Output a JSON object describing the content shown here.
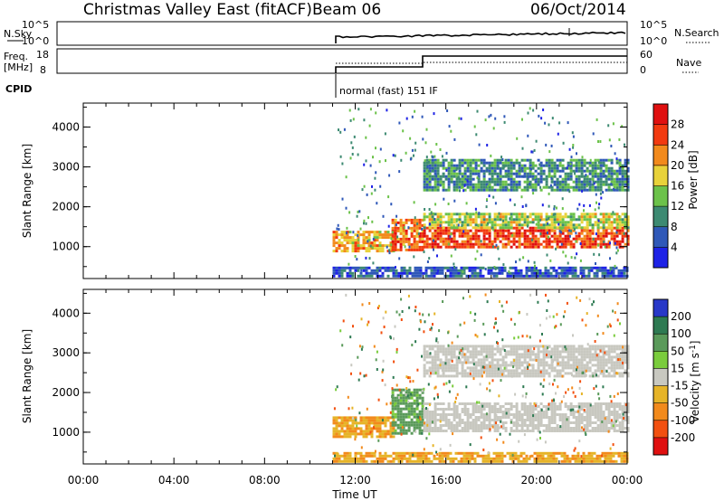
{
  "header": {
    "title": "Christmas Valley East (fitACF)",
    "beam": "Beam 06",
    "date": "06/Oct/2014"
  },
  "strips": {
    "nsky_label": "N.Sky",
    "nsearch_label": "N.Search",
    "freq_label_1": "Freq.",
    "freq_label_2": "[MHz]",
    "nave_label": "Nave",
    "cpid_label": "CPID",
    "cpid_text": "normal (fast) 151 IF",
    "nsky_ticks": [
      "10^5",
      "10^0"
    ],
    "nsearch_ticks": [
      "10^5",
      "10^0"
    ],
    "freq_ticks": [
      "18",
      "8"
    ],
    "nave_ticks": [
      "60",
      "0"
    ]
  },
  "chart_data": [
    {
      "type": "heatmap",
      "name": "Power",
      "xlabel": "",
      "ylabel": "Slant Range [km]",
      "xlim": [
        0,
        24
      ],
      "ylim": [
        200,
        4600
      ],
      "yticks": [
        1000,
        2000,
        3000,
        4000
      ],
      "colorbar": {
        "label": "Power [dB]",
        "ticks": [
          4,
          8,
          12,
          16,
          20,
          24,
          28
        ],
        "range": [
          0,
          32
        ],
        "colors": [
          "#1e22e6",
          "#2f58b8",
          "#3d8a72",
          "#6cc24a",
          "#e8d23a",
          "#f28a1c",
          "#f23a10",
          "#e01010"
        ]
      },
      "features": [
        {
          "t0": 11.0,
          "t1": 13.7,
          "r0": 900,
          "r1": 1400,
          "level": 20
        },
        {
          "t0": 13.6,
          "t1": 15.0,
          "r0": 950,
          "r1": 1700,
          "level": 24
        },
        {
          "t0": 15.0,
          "t1": 24.0,
          "r0": 1000,
          "r1": 1500,
          "level": 26
        },
        {
          "t0": 15.0,
          "t1": 24.0,
          "r0": 1500,
          "r1": 1850,
          "level": 16
        },
        {
          "t0": 15.0,
          "t1": 24.0,
          "r0": 2400,
          "r1": 3200,
          "level": 10
        },
        {
          "t0": 11.0,
          "t1": 24.0,
          "r0": 250,
          "r1": 500,
          "level": 6
        }
      ]
    },
    {
      "type": "heatmap",
      "name": "Velocity",
      "xlabel": "Time UT",
      "ylabel": "Slant Range [km]",
      "xlim": [
        0,
        24
      ],
      "ylim": [
        200,
        4600
      ],
      "xticks": [
        "00:00",
        "04:00",
        "08:00",
        "12:00",
        "16:00",
        "20:00",
        "00:00"
      ],
      "yticks": [
        1000,
        2000,
        3000,
        4000
      ],
      "colorbar": {
        "label": "Velocity [m s^-1]",
        "ticks": [
          200,
          100,
          50,
          15,
          -15,
          -50,
          -100,
          -200
        ],
        "colors": [
          "#2838c8",
          "#2e7a52",
          "#5a9a5a",
          "#7acc3c",
          "#c8c8c0",
          "#e6b428",
          "#f28a1c",
          "#f25010",
          "#e01010"
        ]
      },
      "features": [
        {
          "t0": 11.0,
          "t1": 13.7,
          "r0": 900,
          "r1": 1400,
          "level": -30
        },
        {
          "t0": 13.6,
          "t1": 15.0,
          "r0": 950,
          "r1": 2100,
          "level": 40
        },
        {
          "t0": 15.0,
          "t1": 24.0,
          "r0": 1000,
          "r1": 1750,
          "level": 0
        },
        {
          "t0": 15.0,
          "t1": 24.0,
          "r0": 2400,
          "r1": 3200,
          "level": 0
        },
        {
          "t0": 11.0,
          "t1": 24.0,
          "r0": 250,
          "r1": 500,
          "level": -30
        }
      ]
    }
  ]
}
